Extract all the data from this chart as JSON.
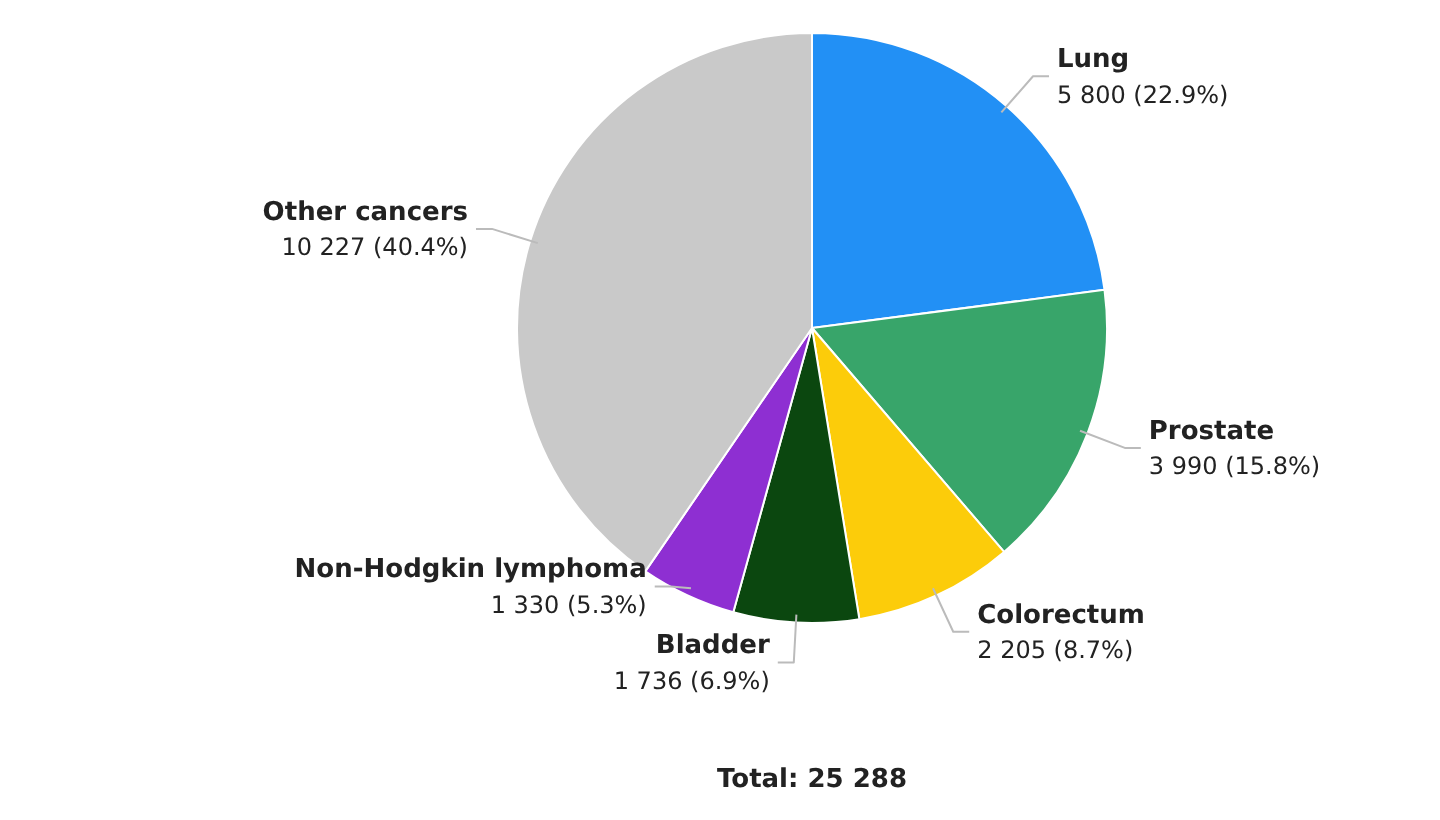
{
  "chart_data": {
    "type": "pie",
    "categories": [
      "Lung",
      "Prostate",
      "Colorectum",
      "Bladder",
      "Non-Hodgkin lymphoma",
      "Other cancers"
    ],
    "values": [
      5800,
      3990,
      2205,
      1736,
      1330,
      10227
    ],
    "colors": [
      "#2290f5",
      "#38a56a",
      "#fccc0a",
      "#0b470f",
      "#8e2fd2",
      "#c9c9c9"
    ],
    "value_labels": [
      "5 800 (22.9%)",
      "3 990 (15.8%)",
      "2 205 (8.7%)",
      "1 736 (6.9%)",
      "1 330 (5.3%)",
      "10 227 (40.4%)"
    ],
    "legend": false,
    "annotations": [
      "Total: 25 288"
    ]
  }
}
